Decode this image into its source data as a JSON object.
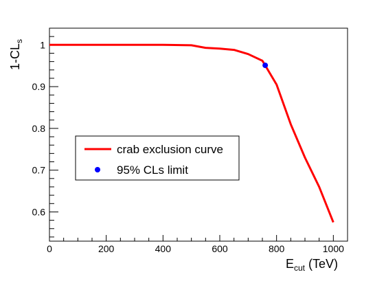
{
  "chart_data": {
    "type": "line",
    "xlabel": {
      "main": "E",
      "sub": "cut",
      "suffix": " (TeV)"
    },
    "ylabel": {
      "main": "1-CL",
      "sub": "s"
    },
    "xlim": [
      0,
      1050
    ],
    "ylim": [
      0.53,
      1.04
    ],
    "xticks": [
      0,
      200,
      400,
      600,
      800,
      1000
    ],
    "yticks": [
      0.6,
      0.7,
      0.8,
      0.9,
      1
    ],
    "grid": false,
    "legend_position": "center-left",
    "series": [
      {
        "name": "crab exclusion curve",
        "color": "#ff0000",
        "style": "line",
        "points": [
          [
            0,
            1.0
          ],
          [
            100,
            1.0
          ],
          [
            200,
            1.0
          ],
          [
            300,
            1.0
          ],
          [
            400,
            1.0
          ],
          [
            500,
            0.999
          ],
          [
            550,
            0.993
          ],
          [
            600,
            0.991
          ],
          [
            650,
            0.988
          ],
          [
            700,
            0.978
          ],
          [
            750,
            0.962
          ],
          [
            760,
            0.951
          ],
          [
            800,
            0.905
          ],
          [
            850,
            0.81
          ],
          [
            900,
            0.73
          ],
          [
            950,
            0.66
          ],
          [
            1000,
            0.575
          ]
        ]
      },
      {
        "name": "95% CLs limit",
        "color": "#0000ff",
        "style": "marker",
        "points": [
          [
            760,
            0.951
          ]
        ]
      }
    ]
  }
}
